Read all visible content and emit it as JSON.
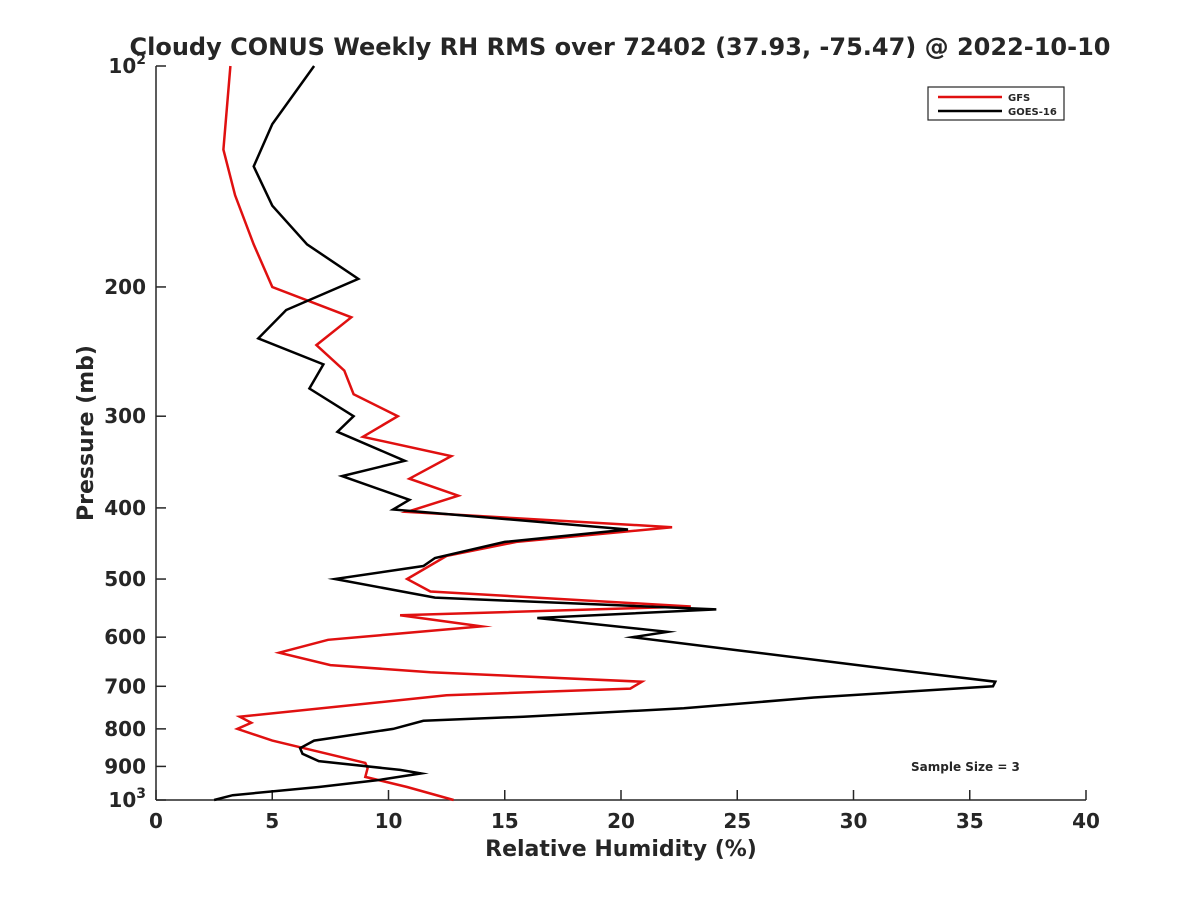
{
  "chart_data": {
    "type": "line",
    "title": "Cloudy CONUS Weekly RH RMS over 72402 (37.93, -75.47) @ 2022-10-10",
    "xlabel": "Relative Humidity (%)",
    "ylabel": "Pressure (mb)",
    "xlim": [
      0,
      40
    ],
    "ylim": [
      100,
      1000
    ],
    "y_scale": "log",
    "y_reversed": true,
    "grid": false,
    "legend_position": "top-right",
    "annotation": "Sample Size = 3",
    "x_ticks": [
      "0",
      "5",
      "10",
      "15",
      "20",
      "25",
      "30",
      "35",
      "40"
    ],
    "y_ticks": [
      {
        "value": 100,
        "base": "10",
        "exp": "2"
      },
      {
        "value": 200,
        "label": "200"
      },
      {
        "value": 300,
        "label": "300"
      },
      {
        "value": 400,
        "label": "400"
      },
      {
        "value": 500,
        "label": "500"
      },
      {
        "value": 600,
        "label": "600"
      },
      {
        "value": 700,
        "label": "700"
      },
      {
        "value": 800,
        "label": "800"
      },
      {
        "value": 900,
        "label": "900"
      },
      {
        "value": 1000,
        "base": "10",
        "exp": "3"
      }
    ],
    "series": [
      {
        "name": "GFS",
        "color": "#e01010",
        "points": [
          [
            3.2,
            100
          ],
          [
            2.9,
            130
          ],
          [
            3.4,
            150
          ],
          [
            4.2,
            175
          ],
          [
            5.0,
            200
          ],
          [
            8.4,
            220
          ],
          [
            6.9,
            240
          ],
          [
            8.1,
            260
          ],
          [
            8.5,
            280
          ],
          [
            10.4,
            300
          ],
          [
            8.9,
            320
          ],
          [
            12.7,
            340
          ],
          [
            10.9,
            365
          ],
          [
            13.0,
            385
          ],
          [
            10.8,
            405
          ],
          [
            22.2,
            425
          ],
          [
            15.5,
            445
          ],
          [
            12.5,
            465
          ],
          [
            10.8,
            500
          ],
          [
            11.8,
            520
          ],
          [
            23.0,
            545
          ],
          [
            10.5,
            560
          ],
          [
            14.0,
            580
          ],
          [
            7.4,
            605
          ],
          [
            5.3,
            630
          ],
          [
            7.5,
            655
          ],
          [
            11.8,
            670
          ],
          [
            20.9,
            690
          ],
          [
            20.4,
            705
          ],
          [
            12.5,
            720
          ],
          [
            3.6,
            770
          ],
          [
            4.1,
            785
          ],
          [
            3.5,
            800
          ],
          [
            5.0,
            830
          ],
          [
            9.0,
            890
          ],
          [
            9.1,
            905
          ],
          [
            9.0,
            930
          ],
          [
            10.8,
            960
          ],
          [
            12.8,
            1000
          ]
        ]
      },
      {
        "name": "GOES-16",
        "color": "#000000",
        "points": [
          [
            6.8,
            100
          ],
          [
            5.0,
            120
          ],
          [
            4.2,
            137
          ],
          [
            5.0,
            155
          ],
          [
            6.5,
            175
          ],
          [
            8.7,
            195
          ],
          [
            5.6,
            215
          ],
          [
            4.4,
            235
          ],
          [
            7.2,
            255
          ],
          [
            6.6,
            275
          ],
          [
            8.5,
            300
          ],
          [
            7.8,
            315
          ],
          [
            10.7,
            345
          ],
          [
            8.0,
            362
          ],
          [
            10.9,
            390
          ],
          [
            10.2,
            402
          ],
          [
            20.3,
            428
          ],
          [
            15.0,
            445
          ],
          [
            12.0,
            468
          ],
          [
            11.5,
            480
          ],
          [
            7.7,
            500
          ],
          [
            12.0,
            530
          ],
          [
            24.1,
            550
          ],
          [
            16.4,
            565
          ],
          [
            22.0,
            590
          ],
          [
            20.5,
            600
          ],
          [
            25.0,
            625
          ],
          [
            31.0,
            660
          ],
          [
            36.1,
            690
          ],
          [
            36.0,
            700
          ],
          [
            28.3,
            725
          ],
          [
            22.7,
            750
          ],
          [
            15.8,
            770
          ],
          [
            11.5,
            780
          ],
          [
            10.2,
            800
          ],
          [
            6.8,
            830
          ],
          [
            6.2,
            850
          ],
          [
            6.3,
            865
          ],
          [
            7.0,
            885
          ],
          [
            10.5,
            910
          ],
          [
            11.4,
            920
          ],
          [
            9.5,
            940
          ],
          [
            7.0,
            960
          ],
          [
            3.3,
            985
          ],
          [
            2.5,
            1000
          ]
        ]
      }
    ]
  }
}
